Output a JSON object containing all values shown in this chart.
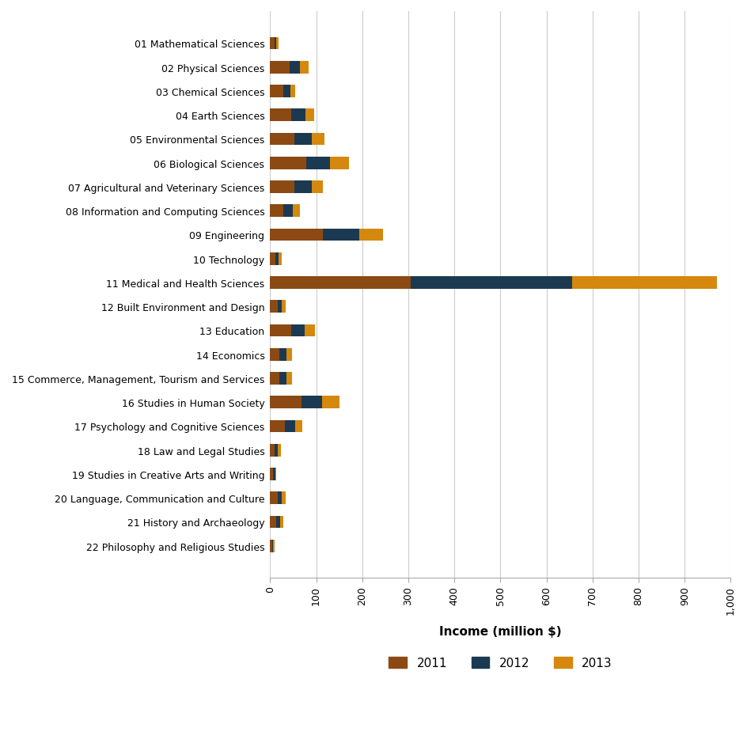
{
  "categories": [
    "01 Mathematical Sciences",
    "02 Physical Sciences",
    "03 Chemical Sciences",
    "04 Earth Sciences",
    "05 Environmental Sciences",
    "06 Biological Sciences",
    "07 Agricultural and Veterinary Sciences",
    "08 Information and Computing Sciences",
    "09 Engineering",
    "10 Technology",
    "11 Medical and Health Sciences",
    "12 Built Environment and Design",
    "13 Education",
    "14 Economics",
    "15 Commerce, Management, Tourism and Services",
    "16 Studies in Human Society",
    "17 Psychology and Cognitive Sciences",
    "18 Law and Legal Studies",
    "19 Studies in Creative Arts and Writing",
    "20 Language, Communication and Culture",
    "21 History and Archaeology",
    "22 Philosophy and Religious Studies"
  ],
  "values_2011": [
    10,
    42,
    28,
    45,
    52,
    78,
    52,
    28,
    115,
    12,
    305,
    16,
    45,
    20,
    20,
    68,
    32,
    10,
    7,
    16,
    14,
    4
  ],
  "values_2012": [
    4,
    22,
    16,
    32,
    38,
    52,
    38,
    22,
    78,
    7,
    350,
    10,
    30,
    16,
    16,
    45,
    22,
    7,
    4,
    10,
    8,
    3
  ],
  "values_2013": [
    4,
    20,
    10,
    18,
    28,
    42,
    24,
    14,
    52,
    7,
    315,
    8,
    22,
    12,
    12,
    38,
    16,
    6,
    3,
    8,
    7,
    2
  ],
  "color_2011": "#8B4A14",
  "color_2012": "#1B3A52",
  "color_2013": "#D4880D",
  "xlabel": "Income (million $)",
  "xlim": [
    0,
    1000
  ],
  "xticks": [
    0,
    100,
    200,
    300,
    400,
    500,
    600,
    700,
    800,
    900,
    1000
  ],
  "xtick_labels": [
    "0",
    "100",
    "200",
    "300",
    "400",
    "500",
    "600",
    "700",
    "800",
    "900",
    "1,000"
  ],
  "background_color": "#ffffff",
  "grid_color": "#cccccc"
}
